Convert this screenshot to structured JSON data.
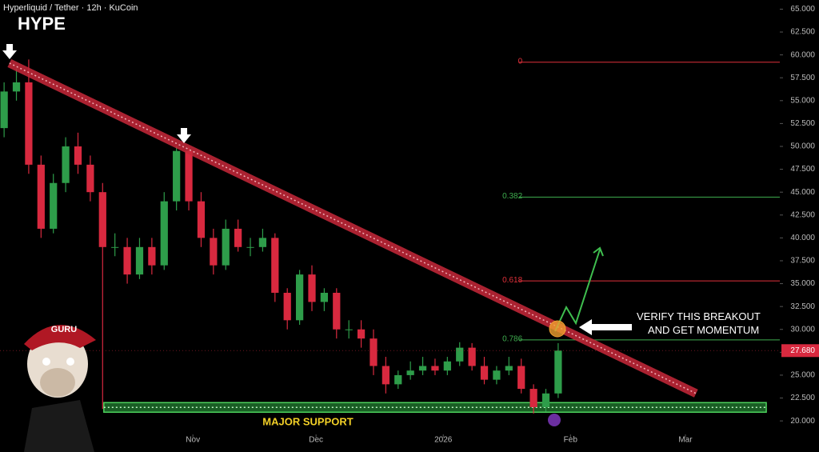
{
  "chart_data": {
    "type": "candlestick",
    "subtitle": "Hyperliquid / Tether · 12h · KuCoin",
    "title": "HYPE",
    "x": [
      1,
      4,
      7,
      10,
      13,
      16,
      19,
      22,
      25,
      28,
      31,
      34,
      37,
      40,
      43,
      46,
      49,
      52,
      55,
      58,
      61,
      64,
      67,
      70,
      73,
      76,
      79,
      82,
      85,
      88,
      91,
      94,
      97,
      100,
      103,
      106,
      109,
      112,
      115,
      118,
      121,
      124,
      127,
      130,
      133,
      136
    ],
    "open": [
      52,
      56,
      57,
      48,
      41,
      46,
      50,
      48,
      45,
      39,
      39,
      36,
      39,
      37,
      44,
      49.5,
      44,
      40,
      37,
      41,
      39,
      39,
      40,
      34,
      31,
      36,
      33,
      34,
      30,
      30,
      29,
      26,
      24,
      25,
      25.5,
      26,
      25.5,
      26.5,
      28,
      26,
      24.5,
      25.5,
      26,
      23.5,
      21.5,
      23
    ],
    "high": [
      57,
      58.5,
      59.5,
      49,
      47,
      51,
      51.5,
      49,
      46,
      40.5,
      40,
      40,
      40,
      45,
      50,
      50,
      45,
      41,
      42,
      42,
      40,
      41,
      40.5,
      34.5,
      36.5,
      37,
      34.5,
      34.5,
      31,
      31,
      30,
      27,
      25.5,
      26.5,
      27,
      26.8,
      27,
      28.6,
      28.5,
      27,
      26,
      27,
      26.8,
      24,
      23.5,
      28.5
    ],
    "low": [
      51,
      55,
      47,
      40,
      40.5,
      45,
      47,
      44,
      21.3,
      38,
      35,
      35.5,
      36,
      36.5,
      43,
      43,
      39,
      36,
      36.5,
      38.5,
      38,
      38.5,
      33,
      30,
      30.5,
      32,
      32,
      29,
      29,
      28,
      25,
      23,
      23.5,
      24.5,
      25,
      25,
      25,
      26,
      25.5,
      24,
      24,
      25,
      23,
      20.8,
      21,
      22.5
    ],
    "close": [
      56,
      57,
      48,
      41,
      46,
      50,
      48,
      45,
      39,
      39,
      36,
      39,
      37,
      44,
      49.5,
      44,
      40,
      37,
      41,
      39,
      39,
      40,
      34,
      31,
      36,
      33,
      34,
      30,
      30,
      29,
      26,
      24,
      25,
      25.5,
      26,
      25.5,
      26.5,
      28,
      26,
      24.5,
      25.5,
      26,
      23.5,
      21.5,
      23,
      27.68
    ],
    "up_color": "#2e9d4a",
    "down_color": "#d8293f",
    "xlim": [
      0,
      190
    ],
    "xticks": [
      {
        "value": 47,
        "label": "Nov"
      },
      {
        "value": 77,
        "label": "Dec"
      },
      {
        "value": 108,
        "label": "2026"
      },
      {
        "value": 139,
        "label": "Feb"
      },
      {
        "value": 167,
        "label": "Mar"
      }
    ],
    "ylim": [
      16.6,
      66
    ],
    "yticks": [
      {
        "value": 20,
        "label": "20.000"
      },
      {
        "value": 22.5,
        "label": "22.500"
      },
      {
        "value": 25,
        "label": "25.000"
      },
      {
        "value": 27.5,
        "label": "27.500"
      },
      {
        "value": 30,
        "label": "30.000"
      },
      {
        "value": 32.5,
        "label": "32.500"
      },
      {
        "value": 35,
        "label": "35.000"
      },
      {
        "value": 37.5,
        "label": "37.500"
      },
      {
        "value": 40,
        "label": "40.000"
      },
      {
        "value": 42.5,
        "label": "42.500"
      },
      {
        "value": 45,
        "label": "45.000"
      },
      {
        "value": 47.5,
        "label": "47.500"
      },
      {
        "value": 50,
        "label": "50.000"
      },
      {
        "value": 52.5,
        "label": "52.500"
      },
      {
        "value": 55,
        "label": "55.000"
      },
      {
        "value": 57.5,
        "label": "57.500"
      },
      {
        "value": 60,
        "label": "60.000"
      },
      {
        "value": 62.5,
        "label": "62.500"
      },
      {
        "value": 65,
        "label": "65.000"
      }
    ],
    "last_price": {
      "value": 27.68,
      "label": "27.680"
    },
    "fib_levels": [
      {
        "label": "0",
        "value": 59.2,
        "color": "#e0303a"
      },
      {
        "label": "0.382",
        "value": 44.46,
        "color": "#3fae4f"
      },
      {
        "label": "0.618",
        "value": 35.3,
        "color": "#e0303a"
      },
      {
        "label": "0.786",
        "value": 28.85,
        "color": "#3fae4f"
      }
    ],
    "fib_x": [
      126.5,
      190
    ],
    "trendline": {
      "x": [
        2.3,
        169.6
      ],
      "values": [
        59.1,
        23.0
      ]
    },
    "support": {
      "label": "MAJOR SUPPORT",
      "range": [
        20.95,
        22.0
      ],
      "x": [
        25.3,
        186.7
      ]
    },
    "annotation": "VERIFY THIS BREAKOUT AND GET MOMENTUM",
    "avatar_badge": "GURU"
  }
}
